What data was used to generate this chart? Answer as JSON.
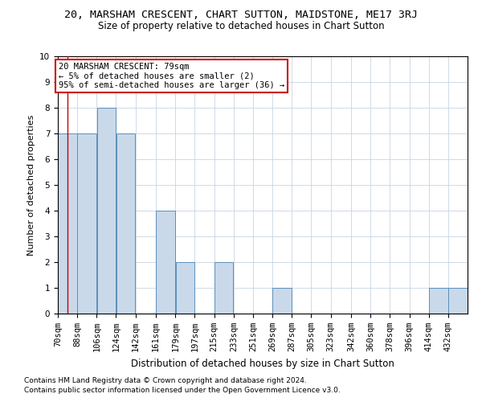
{
  "title_line1": "20, MARSHAM CRESCENT, CHART SUTTON, MAIDSTONE, ME17 3RJ",
  "title_line2": "Size of property relative to detached houses in Chart Sutton",
  "xlabel": "Distribution of detached houses by size in Chart Sutton",
  "ylabel": "Number of detached properties",
  "footnote1": "Contains HM Land Registry data © Crown copyright and database right 2024.",
  "footnote2": "Contains public sector information licensed under the Open Government Licence v3.0.",
  "bins": [
    70,
    88,
    106,
    124,
    142,
    161,
    179,
    197,
    215,
    233,
    251,
    269,
    287,
    305,
    323,
    342,
    360,
    378,
    396,
    414,
    432,
    450
  ],
  "bin_labels": [
    "70sqm",
    "88sqm",
    "106sqm",
    "124sqm",
    "142sqm",
    "161sqm",
    "179sqm",
    "197sqm",
    "215sqm",
    "233sqm",
    "251sqm",
    "269sqm",
    "287sqm",
    "305sqm",
    "323sqm",
    "342sqm",
    "360sqm",
    "378sqm",
    "396sqm",
    "414sqm",
    "432sqm"
  ],
  "counts": [
    7,
    7,
    8,
    7,
    0,
    4,
    2,
    0,
    2,
    0,
    0,
    1,
    0,
    0,
    0,
    0,
    0,
    0,
    0,
    1,
    1
  ],
  "bar_color": "#c9d9ea",
  "bar_edge_color": "#5b8fb9",
  "grid_color": "#c8d4e3",
  "property_size": 79,
  "annotation_line1": "20 MARSHAM CRESCENT: 79sqm",
  "annotation_line2": "← 5% of detached houses are smaller (2)",
  "annotation_line3": "95% of semi-detached houses are larger (36) →",
  "annotation_box_color": "#ffffff",
  "annotation_box_edge_color": "#cc0000",
  "red_line_color": "#cc0000",
  "ylim": [
    0,
    10
  ],
  "yticks": [
    0,
    1,
    2,
    3,
    4,
    5,
    6,
    7,
    8,
    9,
    10
  ],
  "background_color": "#ffffff",
  "title1_fontsize": 9.5,
  "title2_fontsize": 8.5,
  "xlabel_fontsize": 8.5,
  "ylabel_fontsize": 8,
  "tick_fontsize": 7.5,
  "annotation_fontsize": 7.5,
  "footnote_fontsize": 6.5
}
